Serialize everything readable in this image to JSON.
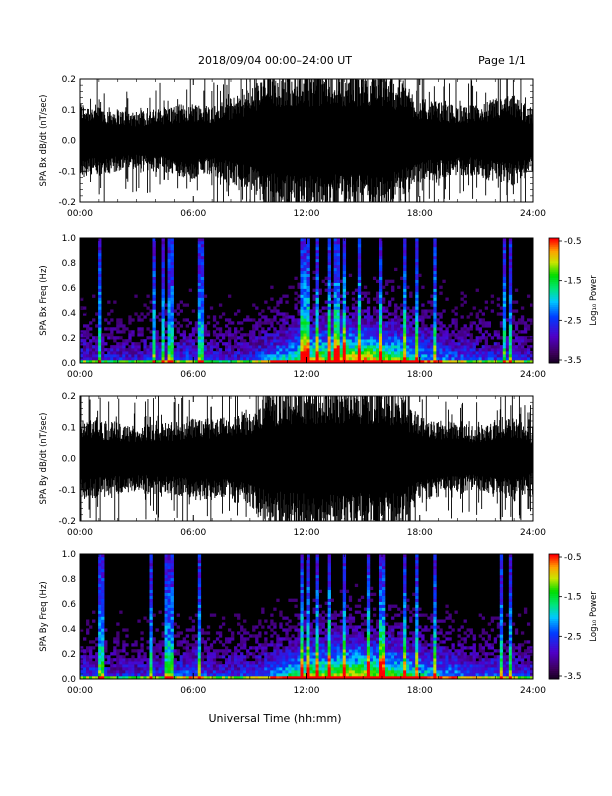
{
  "header": {
    "date_range": "2018/09/04  00:00–24:00 UT",
    "page": "Page 1/1"
  },
  "footer": {
    "xlabel": "Universal Time (hh:mm)"
  },
  "chart_data": [
    {
      "type": "line",
      "ylabel": "SPA Bx dB/dt (nT/sec)",
      "x_ticks": [
        "00:00",
        "06:00",
        "12:00",
        "18:00",
        "24:00"
      ],
      "xlim": [
        0,
        24
      ],
      "ylim": [
        -0.2,
        0.2
      ],
      "y_ticks": [
        "-0.2",
        "-0.1",
        "0.0",
        "0.1",
        "0.2"
      ],
      "envelope": {
        "hours": [
          0,
          1,
          2,
          3,
          4,
          5,
          6,
          7,
          8,
          9,
          10,
          11,
          12,
          13,
          14,
          15,
          16,
          17,
          18,
          19,
          20,
          21,
          22,
          23,
          24
        ],
        "amplitude": [
          0.11,
          0.1,
          0.09,
          0.08,
          0.09,
          0.1,
          0.11,
          0.1,
          0.12,
          0.15,
          0.19,
          0.2,
          0.2,
          0.2,
          0.2,
          0.2,
          0.2,
          0.17,
          0.12,
          0.11,
          0.1,
          0.1,
          0.12,
          0.13,
          0.09
        ]
      }
    },
    {
      "type": "heatmap",
      "ylabel": "SPA Bx Freq (Hz)",
      "x_ticks": [
        "00:00",
        "06:00",
        "12:00",
        "18:00",
        "24:00"
      ],
      "xlim": [
        0,
        24
      ],
      "ylim": [
        0,
        1.0
      ],
      "y_ticks": [
        "0.0",
        "0.2",
        "0.4",
        "0.6",
        "0.8",
        "1.0"
      ],
      "colorbar": {
        "label": "Log₁₀ Power",
        "ticks": [
          "-0.5",
          "-1.5",
          "-2.5",
          "-3.5"
        ],
        "range": [
          -3.5,
          -0.5
        ]
      },
      "activity_by_hour": [
        0.35,
        0.3,
        0.3,
        0.3,
        0.35,
        0.35,
        0.4,
        0.3,
        0.3,
        0.35,
        0.45,
        0.6,
        0.75,
        0.8,
        0.85,
        0.9,
        0.8,
        0.7,
        0.55,
        0.45,
        0.4,
        0.35,
        0.35,
        0.35,
        0.3
      ],
      "spike_hours": [
        1.0,
        1.1,
        3.9,
        4.4,
        4.8,
        6.4,
        11.8,
        12.0,
        12.5,
        13.2,
        13.6,
        14.0,
        14.8,
        15.9,
        17.2,
        17.9,
        18.8,
        22.5,
        22.8
      ]
    },
    {
      "type": "line",
      "ylabel": "SPA By dB/dt (nT/sec)",
      "x_ticks": [
        "00:00",
        "06:00",
        "12:00",
        "18:00",
        "24:00"
      ],
      "xlim": [
        0,
        24
      ],
      "ylim": [
        -0.2,
        0.2
      ],
      "y_ticks": [
        "-0.2",
        "-0.1",
        "0.0",
        "0.1",
        "0.2"
      ],
      "envelope": {
        "hours": [
          0,
          1,
          2,
          3,
          4,
          5,
          6,
          7,
          8,
          9,
          10,
          11,
          12,
          13,
          14,
          15,
          16,
          17,
          18,
          19,
          20,
          21,
          22,
          23,
          24
        ],
        "amplitude": [
          0.12,
          0.11,
          0.1,
          0.09,
          0.1,
          0.1,
          0.12,
          0.11,
          0.12,
          0.14,
          0.18,
          0.2,
          0.2,
          0.2,
          0.2,
          0.2,
          0.2,
          0.18,
          0.12,
          0.11,
          0.1,
          0.09,
          0.11,
          0.12,
          0.08
        ]
      }
    },
    {
      "type": "heatmap",
      "ylabel": "SPA By Freq (Hz)",
      "x_ticks": [
        "00:00",
        "06:00",
        "12:00",
        "18:00",
        "24:00"
      ],
      "xlim": [
        0,
        24
      ],
      "ylim": [
        0,
        1.0
      ],
      "y_ticks": [
        "0.0",
        "0.2",
        "0.4",
        "0.6",
        "0.8",
        "1.0"
      ],
      "colorbar": {
        "label": "Log₁₀ Power",
        "ticks": [
          "-0.5",
          "-1.5",
          "-2.5",
          "-3.5"
        ],
        "range": [
          -3.5,
          -0.5
        ]
      },
      "activity_by_hour": [
        0.35,
        0.35,
        0.3,
        0.3,
        0.35,
        0.35,
        0.45,
        0.35,
        0.35,
        0.35,
        0.45,
        0.6,
        0.75,
        0.8,
        0.85,
        0.85,
        0.8,
        0.7,
        0.6,
        0.5,
        0.45,
        0.4,
        0.4,
        0.35,
        0.3
      ],
      "spike_hours": [
        1.0,
        1.2,
        3.8,
        4.5,
        4.8,
        6.3,
        11.8,
        12.1,
        12.5,
        13.2,
        14.0,
        15.3,
        16.0,
        17.2,
        17.9,
        18.8,
        22.3,
        22.8
      ]
    }
  ]
}
